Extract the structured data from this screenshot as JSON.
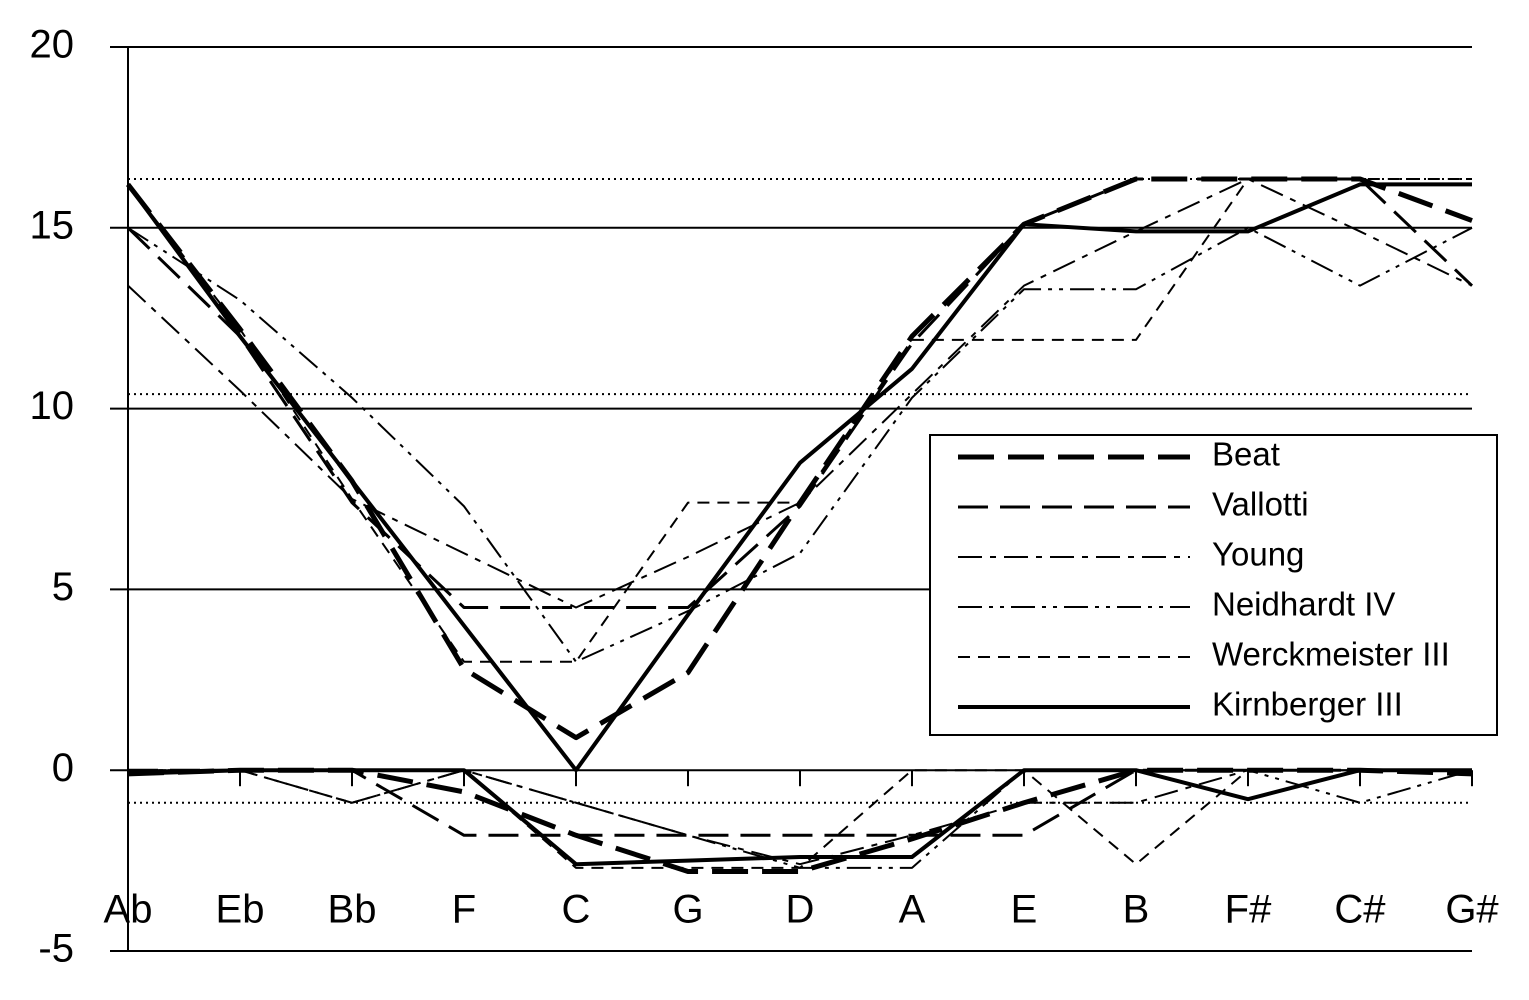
{
  "chart_data": {
    "type": "line",
    "categories": [
      "Ab",
      "Eb",
      "Bb",
      "F",
      "C",
      "G",
      "D",
      "A",
      "E",
      "B",
      "F#",
      "C#",
      "G#"
    ],
    "ylim": [
      -5,
      20
    ],
    "yticks": [
      -5,
      0,
      5,
      10,
      15,
      20
    ],
    "reference_lines": [
      16.35,
      10.4,
      -0.9
    ],
    "grid": true,
    "legend": "right",
    "series": [
      {
        "name": "Beat",
        "color": "#000",
        "dash": "36 14",
        "width": 5,
        "values": [
          16.2,
          12.2,
          8.0,
          2.8,
          0.9,
          2.7,
          7.4,
          12.0,
          15.1,
          16.35,
          16.35,
          16.35,
          15.2
        ],
        "lower": [
          -0.1,
          0,
          0,
          -0.6,
          -1.8,
          -2.8,
          -2.8,
          -1.9,
          -0.9,
          0,
          0,
          0,
          -0.1
        ]
      },
      {
        "name": "Vallotti",
        "color": "#000",
        "dash": "30 12",
        "width": 3,
        "values": [
          15.0,
          12.0,
          7.4,
          4.5,
          4.5,
          4.5,
          7.3,
          11.8,
          15.1,
          16.35,
          16.35,
          16.35,
          13.4
        ],
        "lower": [
          0,
          0,
          0,
          -1.8,
          -1.8,
          -1.8,
          -1.8,
          -1.8,
          -1.8,
          0,
          0,
          0,
          0
        ]
      },
      {
        "name": "Young",
        "color": "#000",
        "dash": "24 8 6 8",
        "width": 2,
        "values": [
          13.4,
          10.5,
          7.5,
          6.0,
          4.5,
          5.9,
          7.4,
          10.4,
          13.4,
          14.9,
          16.35,
          14.9,
          13.4
        ],
        "lower": [
          0,
          0,
          -0.9,
          0,
          -0.9,
          -1.8,
          -2.6,
          -1.8,
          -0.9,
          -0.9,
          0,
          0,
          0
        ]
      },
      {
        "name": "Neidhardt IV",
        "color": "#000",
        "dash": "24 7 4 7 4 7",
        "width": 2,
        "values": [
          15.0,
          13.0,
          10.3,
          7.3,
          3.0,
          4.4,
          6.0,
          10.3,
          13.3,
          13.3,
          15.0,
          13.4,
          15.0
        ],
        "lower": [
          0,
          0,
          -0.9,
          0,
          -0.9,
          -1.8,
          -2.7,
          -2.7,
          0,
          0,
          0,
          -0.9,
          0
        ]
      },
      {
        "name": "Werckmeister III",
        "color": "#000",
        "dash": "12 8",
        "width": 2,
        "values": [
          16.2,
          12.2,
          7.5,
          3.0,
          3.0,
          7.4,
          7.4,
          11.9,
          11.9,
          11.9,
          16.35,
          16.35,
          16.35
        ],
        "lower": [
          0,
          0,
          0,
          0,
          -2.7,
          -2.7,
          -2.7,
          0,
          0,
          -2.6,
          0,
          0,
          0
        ]
      },
      {
        "name": "Kirnberger III",
        "color": "#000",
        "dash": "none",
        "width": 4,
        "values": [
          16.2,
          12.0,
          8.0,
          4.0,
          0,
          4.3,
          8.5,
          11.1,
          15.1,
          14.9,
          14.9,
          16.2,
          16.2
        ],
        "lower": [
          -0.1,
          0,
          0,
          0,
          -2.6,
          -2.5,
          -2.4,
          -2.4,
          0,
          0,
          -0.8,
          0,
          0
        ]
      }
    ]
  }
}
